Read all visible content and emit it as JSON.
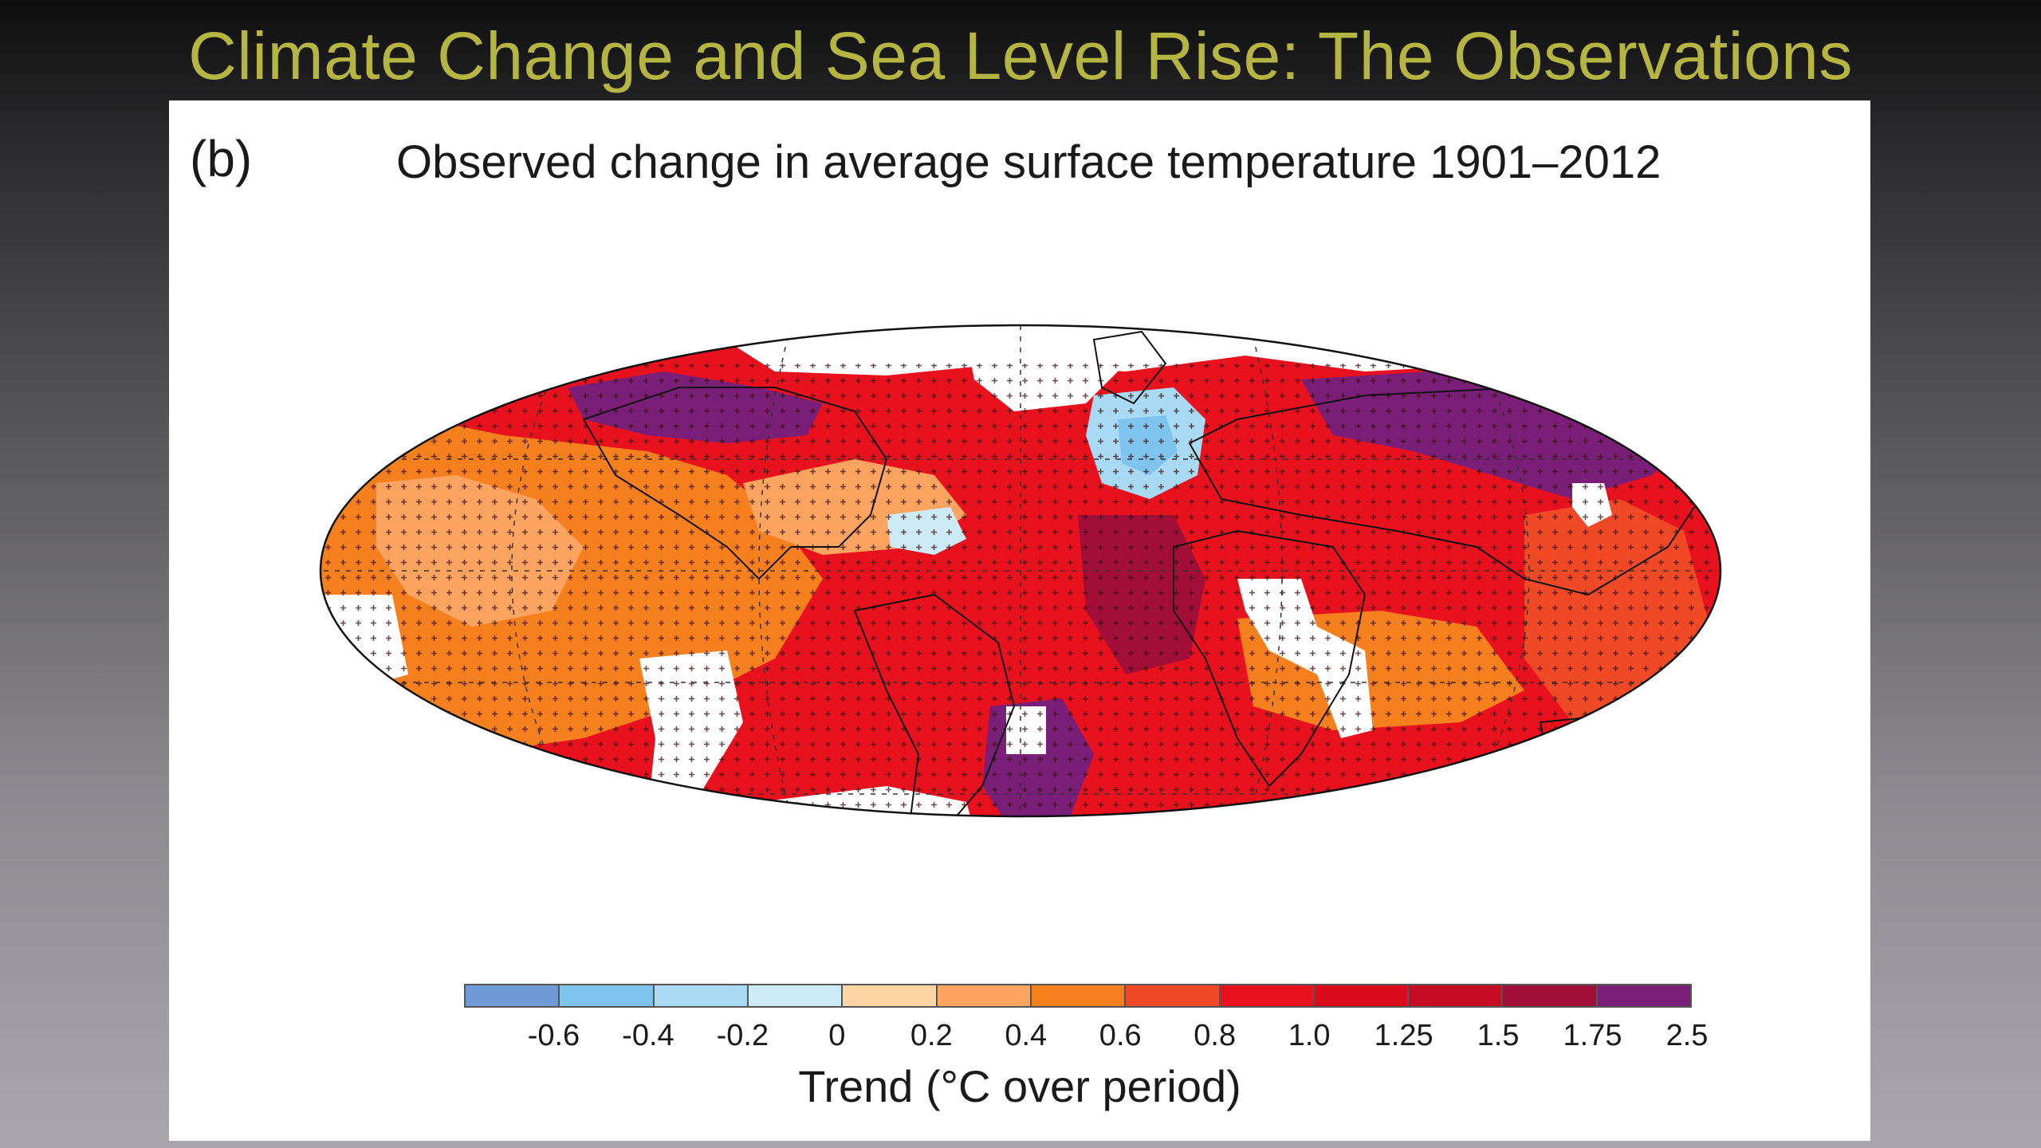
{
  "slide": {
    "title": "Climate Change and Sea Level Rise: The Observations"
  },
  "figure": {
    "panel_label": "(b)",
    "title": "Observed change in average surface temperature 1901–2012"
  },
  "colorbar": {
    "title": "Trend (°C over period)",
    "colors": [
      "#6f9ad6",
      "#7fc4ee",
      "#a9daf3",
      "#cdeaf7",
      "#fdd4a3",
      "#fca460",
      "#f6801e",
      "#ef4a25",
      "#e8121e",
      "#dc0b1c",
      "#c40c22",
      "#a10f38",
      "#7a1f78"
    ],
    "tick_labels": [
      "-0.6",
      "-0.4",
      "-0.2",
      "0",
      "0.2",
      "0.4",
      "0.6",
      "0.8",
      "1.0",
      "1.25",
      "1.5",
      "1.75",
      "2.5"
    ]
  },
  "colors": {
    "title": "#b5b542",
    "ocean_base": "#e8121e",
    "no_data": "#ffffff"
  }
}
